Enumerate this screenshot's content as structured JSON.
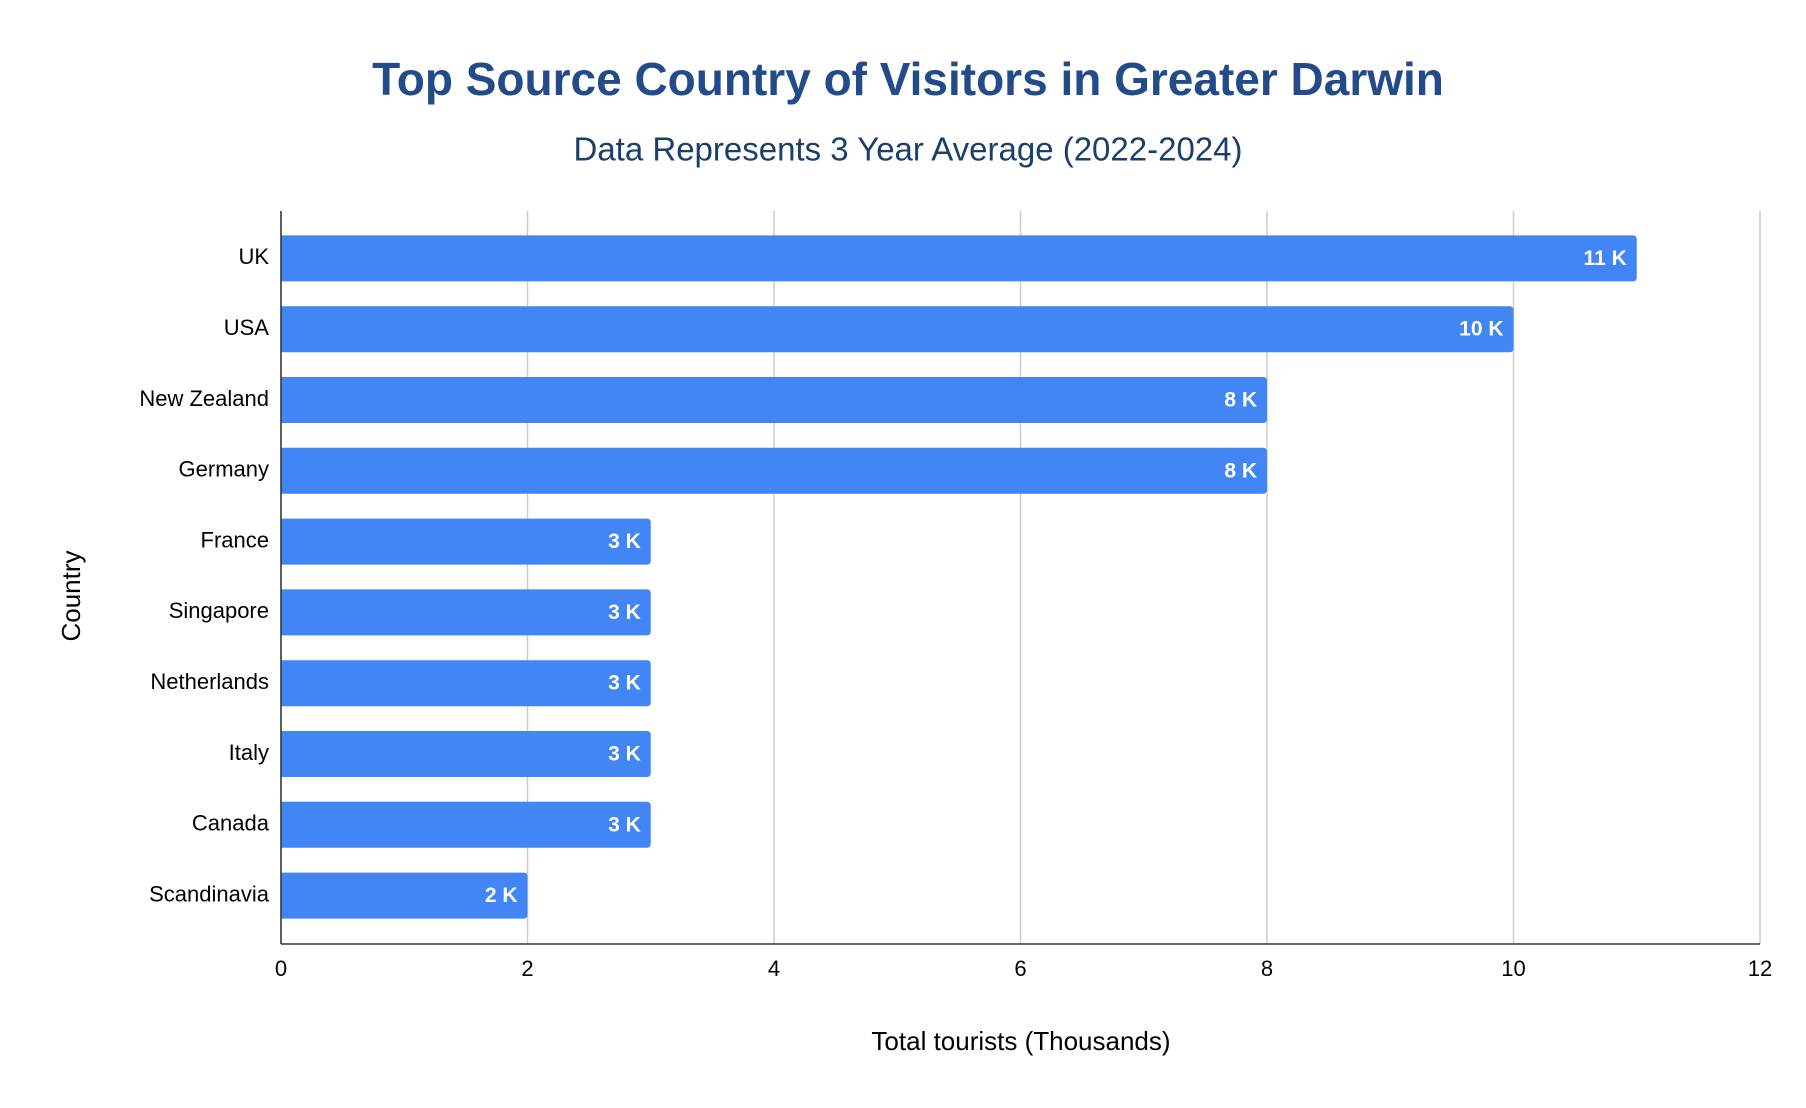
{
  "chart_data": {
    "type": "bar",
    "orientation": "horizontal",
    "title": "Top Source Country of Visitors in Greater Darwin",
    "subtitle": "Data Represents 3 Year Average (2022-2024)",
    "x_label": "Total tourists (Thousands)",
    "y_label": "Country",
    "categories": [
      "UK",
      "USA",
      "New Zealand",
      "Germany",
      "France",
      "Singapore",
      "Netherlands",
      "Italy",
      "Canada",
      "Scandinavia"
    ],
    "values": [
      11,
      10,
      8,
      8,
      3,
      3,
      3,
      3,
      3,
      2
    ],
    "value_labels": [
      "11 K",
      "10 K",
      "8 K",
      "8 K",
      "3 K",
      "3 K",
      "3 K",
      "3 K",
      "3 K",
      "2 K"
    ],
    "color": "#4285f4",
    "xlim": [
      0,
      12
    ],
    "xticks": [
      0,
      2,
      4,
      6,
      8,
      10,
      12
    ],
    "grid": true
  }
}
